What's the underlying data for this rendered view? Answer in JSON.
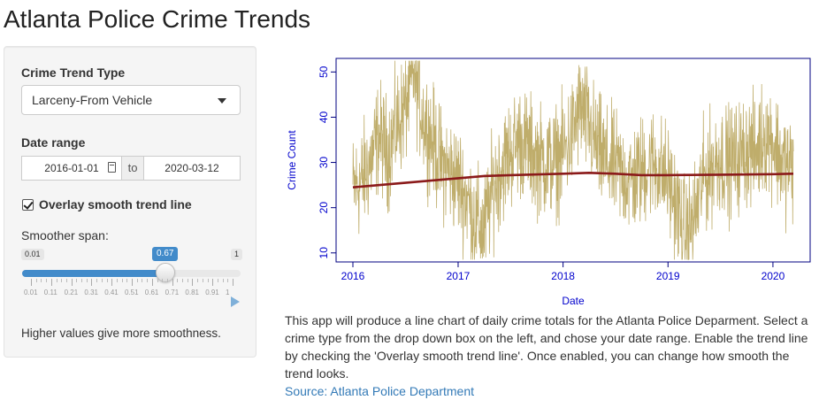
{
  "page": {
    "title": "Atlanta Police Crime Trends"
  },
  "sidebar": {
    "crime_type": {
      "label": "Crime Trend Type",
      "selected": "Larceny-From Vehicle"
    },
    "date_range": {
      "label": "Date range",
      "start": "2016-01-01",
      "separator": "to",
      "end": "2020-03-12"
    },
    "smooth": {
      "label": "Overlay smooth trend line",
      "checked": true
    },
    "span": {
      "label": "Smoother span:",
      "min": 0.01,
      "max": 1,
      "value": 0.67,
      "min_text": "0.01",
      "max_text": "1",
      "value_text": "0.67",
      "grid": [
        "0.01",
        "0.11",
        "0.21",
        "0.31",
        "0.41",
        "0.51",
        "0.61",
        "0.71",
        "0.81",
        "0.91",
        "1"
      ]
    },
    "hint": "Higher values give more smoothness."
  },
  "chart_data": {
    "type": "line",
    "xlabel": "Date",
    "ylabel": "Crime Count",
    "xlim": [
      "2016-01-01",
      "2020-03-12"
    ],
    "ylim": [
      8,
      53
    ],
    "x_ticks": [
      "2016",
      "2017",
      "2018",
      "2019",
      "2020"
    ],
    "y_ticks": [
      10,
      20,
      30,
      40,
      50
    ],
    "grid": false,
    "series": [
      {
        "color": "#bfad6b",
        "style": "daily values (approximate envelope)",
        "x": [
          "2016-01-01",
          "2016-02-01",
          "2016-03-01",
          "2016-04-01",
          "2016-05-01",
          "2016-06-01",
          "2016-07-01",
          "2016-08-01",
          "2016-09-01",
          "2016-10-01",
          "2016-11-01",
          "2016-12-01",
          "2017-01-01",
          "2017-02-01",
          "2017-03-01",
          "2017-04-01",
          "2017-05-01",
          "2017-06-01",
          "2017-07-01",
          "2017-08-01",
          "2017-09-01",
          "2017-10-01",
          "2017-11-01",
          "2017-12-01",
          "2018-01-01",
          "2018-02-01",
          "2018-03-01",
          "2018-04-01",
          "2018-05-01",
          "2018-06-01",
          "2018-07-01",
          "2018-08-01",
          "2018-09-01",
          "2018-10-01",
          "2018-11-01",
          "2018-12-01",
          "2019-01-01",
          "2019-02-01",
          "2019-03-01",
          "2019-04-01",
          "2019-05-01",
          "2019-06-01",
          "2019-07-01",
          "2019-08-01",
          "2019-09-01",
          "2019-10-01",
          "2019-11-01",
          "2019-12-01",
          "2020-01-01",
          "2020-02-01",
          "2020-03-01"
        ],
        "values": [
          24,
          26,
          30,
          36,
          32,
          38,
          42,
          50,
          40,
          35,
          30,
          28,
          26,
          22,
          17,
          15,
          24,
          29,
          32,
          35,
          33,
          31,
          30,
          30,
          32,
          36,
          42,
          38,
          33,
          30,
          29,
          27,
          26,
          28,
          30,
          29,
          26,
          20,
          14,
          17,
          26,
          29,
          31,
          30,
          31,
          33,
          32,
          36,
          35,
          30,
          29
        ]
      },
      {
        "color": "#8b1a1a",
        "style": "smooth trend",
        "x": [
          "2016-01-01",
          "2016-07-01",
          "2017-01-01",
          "2017-04-01",
          "2017-07-01",
          "2018-01-01",
          "2018-04-01",
          "2018-07-01",
          "2018-10-01",
          "2019-01-01",
          "2019-07-01",
          "2020-01-01",
          "2020-03-12"
        ],
        "values": [
          24.5,
          25.5,
          26.5,
          27.0,
          27.2,
          27.5,
          27.7,
          27.5,
          27.2,
          27.2,
          27.3,
          27.4,
          27.5
        ]
      }
    ],
    "colors": {
      "axis_text": "#0000cc",
      "frame": "#000080",
      "daily": "#bfad6b",
      "trend": "#8b1a1a"
    }
  },
  "description": {
    "text": "This app will produce a line chart of daily crime totals for the Atlanta Police Deparment. Select a crime type from the drop down box on the left, and chose your date range. Enable the trend line by checking the 'Overlay smooth trend line'. Once enabled, you can change how smooth the trend looks.",
    "source_label": "Source: Atlanta Police Department"
  }
}
